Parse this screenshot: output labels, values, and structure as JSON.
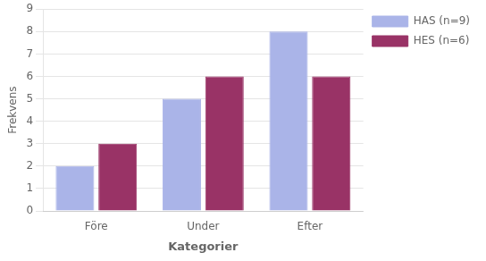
{
  "chart_data": {
    "type": "bar",
    "xlabel": "Kategorier",
    "ylabel": "Frekvens",
    "categories": [
      "Före",
      "Under",
      "Efter"
    ],
    "series": [
      {
        "name": "HAS (n=9)",
        "color": "#aab4e8",
        "values": [
          2,
          5,
          8
        ]
      },
      {
        "name": "HES (n=6)",
        "color": "#993366",
        "values": [
          3,
          6,
          6
        ]
      }
    ],
    "ylim": [
      0,
      9
    ],
    "yticks": [
      0,
      1,
      2,
      3,
      4,
      5,
      6,
      7,
      8,
      9
    ],
    "grid": true,
    "legend": "right"
  }
}
